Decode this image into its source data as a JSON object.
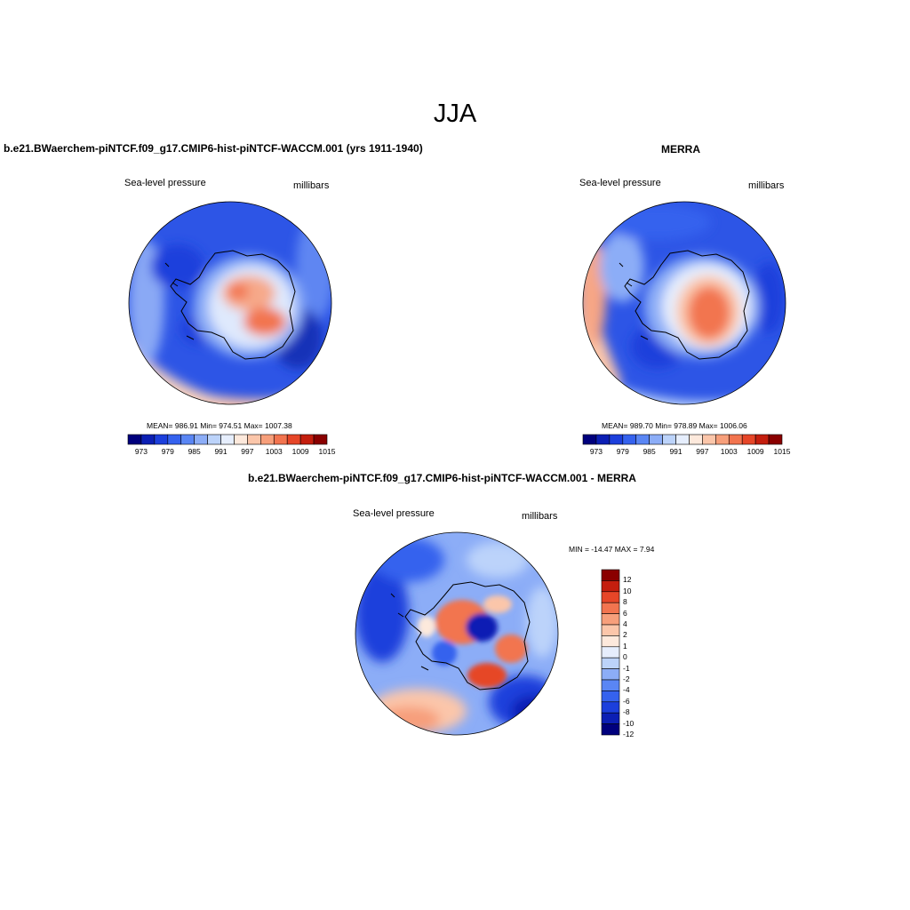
{
  "title": "JJA",
  "panels": [
    {
      "title": "b.e21.BWaerchem-piNTCF.f09_g17.CMIP6-hist-piNTCF-WACCM.001 (yrs 1911-1940)",
      "left_label": "Sea-level pressure",
      "right_label": "millibars",
      "stats": "MEAN= 986.91   Min= 974.51   Max= 1007.38",
      "colorbar_ticks": [
        "973",
        "979",
        "985",
        "991",
        "997",
        "1003",
        "1009",
        "1015"
      ]
    },
    {
      "title": "MERRA",
      "left_label": "Sea-level pressure",
      "right_label": "millibars",
      "stats": "MEAN= 989.70   Min= 978.89   Max= 1006.06",
      "colorbar_ticks": [
        "973",
        "979",
        "985",
        "991",
        "997",
        "1003",
        "1009",
        "1015"
      ]
    },
    {
      "title": "b.e21.BWaerchem-piNTCF.f09_g17.CMIP6-hist-piNTCF-WACCM.001 - MERRA",
      "left_label": "Sea-level pressure",
      "right_label": "millibars",
      "stats": "MIN = -14.47 MAX =   7.94",
      "colorbar_ticks": [
        "12",
        "10",
        "8",
        "6",
        "4",
        "2",
        "1",
        "0",
        "-1",
        "-2",
        "-4",
        "-6",
        "-8",
        "-10",
        "-12"
      ]
    }
  ],
  "palette": [
    "#00007d",
    "#0c1fb4",
    "#1c3fdc",
    "#3562ee",
    "#5a86f4",
    "#8cadf7",
    "#bcd3fa",
    "#e6eefd",
    "#fde9dc",
    "#fbc6aa",
    "#f79f7b",
    "#f2744f",
    "#e64628",
    "#c41e0e",
    "#8a0000"
  ],
  "colors": {
    "base_low": "#2d55e6",
    "high": "#f26a3c",
    "coast": "#000000"
  }
}
